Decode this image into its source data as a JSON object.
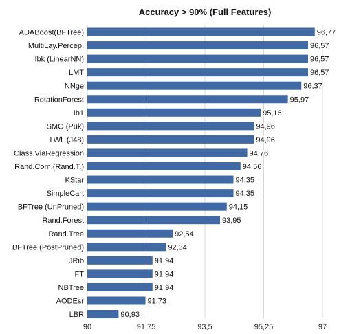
{
  "chart_data": {
    "type": "bar",
    "orientation": "horizontal",
    "title": "Accuracy > 90% (Full Features)",
    "xlabel": "",
    "ylabel": "",
    "xlim": [
      90,
      97
    ],
    "x_ticks": [
      90,
      91.75,
      93.5,
      95.25,
      97
    ],
    "x_tick_labels": [
      "90",
      "91,75",
      "93,5",
      "95,25",
      "97"
    ],
    "grid": "vertical",
    "legend": "none",
    "bar_color": "#4169A4",
    "categories": [
      "ADABoost(BFTree)",
      "MultiLay.Percep.",
      "Ibk (LinearNN)",
      "LMT",
      "NNge",
      "RotationForest",
      "Ib1",
      "SMO (Puk)",
      "LWL (J48)",
      "Class.ViaRegression",
      "Rand.Com.(Rand.T.)",
      "KStar",
      "SimpleCart",
      "BFTree (UnPruned)",
      "Rand.Forest",
      "Rand.Tree",
      "BFTree (PostPruned)",
      "JRib",
      "FT",
      "NBTree",
      "AODEsr",
      "LBR"
    ],
    "values": [
      96.77,
      96.57,
      96.57,
      96.57,
      96.37,
      95.97,
      95.16,
      94.96,
      94.96,
      94.76,
      94.56,
      94.35,
      94.35,
      94.15,
      93.95,
      92.54,
      92.34,
      91.94,
      91.94,
      91.94,
      91.73,
      90.93
    ],
    "value_labels": [
      "96,77",
      "96,57",
      "96,57",
      "96,57",
      "96,37",
      "95,97",
      "95,16",
      "94,96",
      "94,96",
      "94,76",
      "94,56",
      "94,35",
      "94,35",
      "94,15",
      "93,95",
      "92,54",
      "92,34",
      "91,94",
      "91,94",
      "91,94",
      "91,73",
      "90,93"
    ]
  }
}
